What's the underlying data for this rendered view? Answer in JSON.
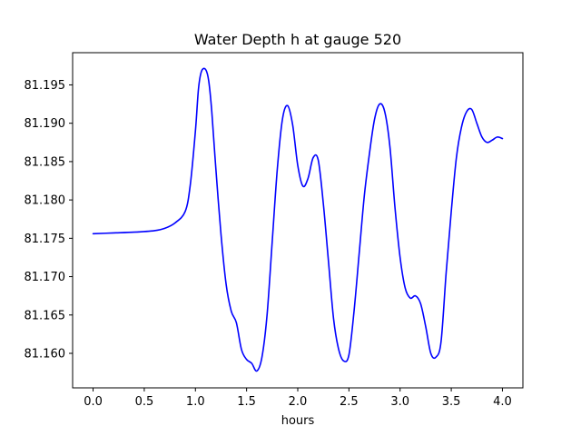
{
  "chart_data": {
    "type": "line",
    "title": "Water Depth h at gauge 520",
    "xlabel": "hours",
    "ylabel": "",
    "xlim": [
      -0.2,
      4.2
    ],
    "ylim": [
      81.1555,
      81.1992
    ],
    "x_ticks": [
      0.0,
      0.5,
      1.0,
      1.5,
      2.0,
      2.5,
      3.0,
      3.5,
      4.0
    ],
    "x_tick_labels": [
      "0.0",
      "0.5",
      "1.0",
      "1.5",
      "2.0",
      "2.5",
      "3.0",
      "3.5",
      "4.0"
    ],
    "y_ticks": [
      81.16,
      81.165,
      81.17,
      81.175,
      81.18,
      81.185,
      81.19,
      81.195
    ],
    "y_tick_labels": [
      "81.160",
      "81.165",
      "81.170",
      "81.175",
      "81.180",
      "81.185",
      "81.190",
      "81.195"
    ],
    "grid": false,
    "series": [
      {
        "color": "#0000ff",
        "x": [
          0.0,
          0.2,
          0.4,
          0.6,
          0.7,
          0.8,
          0.9,
          0.95,
          1.0,
          1.03,
          1.06,
          1.1,
          1.13,
          1.16,
          1.2,
          1.25,
          1.3,
          1.35,
          1.4,
          1.45,
          1.5,
          1.55,
          1.6,
          1.65,
          1.7,
          1.75,
          1.8,
          1.85,
          1.9,
          1.95,
          2.0,
          2.05,
          2.1,
          2.15,
          2.2,
          2.25,
          2.3,
          2.35,
          2.4,
          2.45,
          2.5,
          2.55,
          2.6,
          2.65,
          2.7,
          2.75,
          2.8,
          2.85,
          2.9,
          2.95,
          3.0,
          3.05,
          3.1,
          3.15,
          3.2,
          3.25,
          3.3,
          3.35,
          3.4,
          3.45,
          3.5,
          3.55,
          3.6,
          3.65,
          3.7,
          3.75,
          3.8,
          3.85,
          3.9,
          3.95,
          4.0
        ],
        "y": [
          81.1756,
          81.1757,
          81.1758,
          81.176,
          81.1763,
          81.177,
          81.1785,
          81.182,
          81.189,
          81.1945,
          81.1968,
          81.197,
          81.1955,
          81.1915,
          81.184,
          81.1755,
          81.169,
          81.1655,
          81.164,
          81.1605,
          81.1592,
          81.1587,
          81.1577,
          81.1595,
          81.165,
          81.1745,
          81.184,
          81.1905,
          81.1923,
          81.1898,
          81.1845,
          81.1818,
          81.1828,
          81.1855,
          81.1852,
          81.1795,
          81.172,
          81.1645,
          81.1605,
          81.159,
          81.1598,
          81.1655,
          81.173,
          81.1805,
          81.186,
          81.1905,
          81.1925,
          81.1915,
          81.187,
          81.179,
          81.1725,
          81.1685,
          81.1672,
          81.1675,
          81.1665,
          81.1635,
          81.16,
          81.1595,
          81.1615,
          81.1705,
          81.1785,
          81.1855,
          81.1895,
          81.1915,
          81.1918,
          81.19,
          81.1882,
          81.1875,
          81.1878,
          81.1882,
          81.188
        ]
      }
    ]
  }
}
